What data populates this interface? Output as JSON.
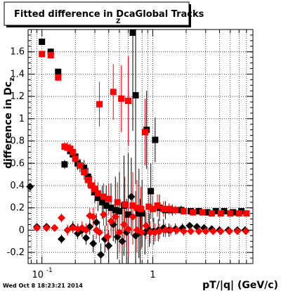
{
  "chart_data": {
    "type": "scatter",
    "title": "Fitted difference in DcaGlobal Tracks",
    "title_subscript": "Z",
    "title_subscript_after": "Dca",
    "xlabel": "pT/|q| (GeV/c)",
    "ylabel": "difference in Dc",
    "ylabel_subscript": "z",
    "x_scale": "log",
    "xlim": [
      0.075,
      8.0
    ],
    "ylim": [
      -0.3,
      1.8
    ],
    "x_tick_labels": [
      "10^-1",
      "1"
    ],
    "y_ticks": [
      -0.2,
      0,
      0.2,
      0.4,
      0.6,
      0.8,
      1,
      1.2,
      1.4,
      1.6
    ],
    "grid": true,
    "timestamp": "Wed Oct  8 18:23:21 2014",
    "series": [
      {
        "marker": "square",
        "color": "#000000",
        "points": [
          {
            "x": 0.1,
            "y": 1.69,
            "err": 0.03
          },
          {
            "x": 0.12,
            "y": 1.6,
            "err": 0.03
          },
          {
            "x": 0.14,
            "y": 1.42,
            "err": 0.03
          },
          {
            "x": 0.16,
            "y": 0.59,
            "err": 0.04
          },
          {
            "x": 0.18,
            "y": 0.71,
            "err": 0.05
          },
          {
            "x": 0.19,
            "y": 0.68,
            "err": 0.05
          },
          {
            "x": 0.2,
            "y": 0.66,
            "err": 0.05
          },
          {
            "x": 0.21,
            "y": 0.6,
            "err": 0.06
          },
          {
            "x": 0.22,
            "y": 0.58,
            "err": 0.06
          },
          {
            "x": 0.24,
            "y": 0.56,
            "err": 0.07
          },
          {
            "x": 0.26,
            "y": 0.48,
            "err": 0.08
          },
          {
            "x": 0.28,
            "y": 0.4,
            "err": 0.09
          },
          {
            "x": 0.3,
            "y": 0.34,
            "err": 0.1
          },
          {
            "x": 0.32,
            "y": 0.29,
            "err": 0.12
          },
          {
            "x": 0.35,
            "y": 0.25,
            "err": 0.15
          },
          {
            "x": 0.38,
            "y": 0.22,
            "err": 0.18
          },
          {
            "x": 0.42,
            "y": 0.2,
            "err": 0.22
          },
          {
            "x": 0.46,
            "y": 0.18,
            "err": 0.3
          },
          {
            "x": 0.5,
            "y": 0.17,
            "err": 0.35
          },
          {
            "x": 0.55,
            "y": 0.22,
            "err": 0.45
          },
          {
            "x": 0.6,
            "y": 0.14,
            "err": 0.55
          },
          {
            "x": 0.66,
            "y": 1.79,
            "err": 0.9
          },
          {
            "x": 0.7,
            "y": 1.21,
            "err": 0.8
          },
          {
            "x": 0.75,
            "y": 0.15,
            "err": 0.4
          },
          {
            "x": 0.8,
            "y": 0.15,
            "err": 0.3
          },
          {
            "x": 0.88,
            "y": 0.9,
            "err": 0.35
          },
          {
            "x": 0.96,
            "y": 0.35,
            "err": 0.25
          },
          {
            "x": 1.05,
            "y": 0.81,
            "err": 0.2
          },
          {
            "x": 1.15,
            "y": 0.2,
            "err": 0.12
          },
          {
            "x": 1.3,
            "y": 0.18,
            "err": 0.08
          },
          {
            "x": 1.5,
            "y": 0.18,
            "err": 0.05
          },
          {
            "x": 1.8,
            "y": 0.18,
            "err": 0.04
          },
          {
            "x": 2.2,
            "y": 0.17,
            "err": 0.03
          },
          {
            "x": 2.6,
            "y": 0.17,
            "err": 0.03
          },
          {
            "x": 3.1,
            "y": 0.16,
            "err": 0.03
          },
          {
            "x": 3.7,
            "y": 0.17,
            "err": 0.02
          },
          {
            "x": 4.4,
            "y": 0.17,
            "err": 0.02
          },
          {
            "x": 5.3,
            "y": 0.16,
            "err": 0.02
          },
          {
            "x": 6.3,
            "y": 0.17,
            "err": 0.02
          }
        ]
      },
      {
        "marker": "square",
        "color": "#ff0000",
        "points": [
          {
            "x": 0.1,
            "y": 1.58,
            "err": 0.03
          },
          {
            "x": 0.12,
            "y": 1.57,
            "err": 0.03
          },
          {
            "x": 0.14,
            "y": 1.37,
            "err": 0.03
          },
          {
            "x": 0.16,
            "y": 0.75,
            "err": 0.04
          },
          {
            "x": 0.17,
            "y": 0.74,
            "err": 0.05
          },
          {
            "x": 0.18,
            "y": 0.73,
            "err": 0.05
          },
          {
            "x": 0.19,
            "y": 0.7,
            "err": 0.05
          },
          {
            "x": 0.2,
            "y": 0.64,
            "err": 0.05
          },
          {
            "x": 0.22,
            "y": 0.58,
            "err": 0.06
          },
          {
            "x": 0.24,
            "y": 0.52,
            "err": 0.07
          },
          {
            "x": 0.26,
            "y": 0.45,
            "err": 0.07
          },
          {
            "x": 0.28,
            "y": 0.4,
            "err": 0.08
          },
          {
            "x": 0.3,
            "y": 0.37,
            "err": 0.09
          },
          {
            "x": 0.32,
            "y": 0.33,
            "err": 0.1
          },
          {
            "x": 0.33,
            "y": 1.13,
            "err": 0.2
          },
          {
            "x": 0.36,
            "y": 0.3,
            "err": 0.12
          },
          {
            "x": 0.4,
            "y": 0.28,
            "err": 0.14
          },
          {
            "x": 0.44,
            "y": 1.24,
            "err": 0.25
          },
          {
            "x": 0.48,
            "y": 0.25,
            "err": 0.18
          },
          {
            "x": 0.52,
            "y": 1.18,
            "err": 0.3
          },
          {
            "x": 0.56,
            "y": 0.23,
            "err": 0.25
          },
          {
            "x": 0.6,
            "y": 1.16,
            "err": 0.4
          },
          {
            "x": 0.66,
            "y": 0.22,
            "err": 0.3
          },
          {
            "x": 0.72,
            "y": 0.2,
            "err": 0.25
          },
          {
            "x": 0.78,
            "y": 0.19,
            "err": 0.2
          },
          {
            "x": 0.85,
            "y": 0.88,
            "err": 0.3
          },
          {
            "x": 0.92,
            "y": 0.21,
            "err": 0.15
          },
          {
            "x": 1.0,
            "y": 0.19,
            "err": 0.12
          },
          {
            "x": 1.1,
            "y": 0.22,
            "err": 0.1
          },
          {
            "x": 1.25,
            "y": 0.19,
            "err": 0.07
          },
          {
            "x": 1.4,
            "y": 0.19,
            "err": 0.05
          },
          {
            "x": 1.6,
            "y": 0.18,
            "err": 0.04
          },
          {
            "x": 1.9,
            "y": 0.17,
            "err": 0.03
          },
          {
            "x": 2.3,
            "y": 0.16,
            "err": 0.03
          },
          {
            "x": 2.8,
            "y": 0.16,
            "err": 0.03
          },
          {
            "x": 3.4,
            "y": 0.15,
            "err": 0.02
          },
          {
            "x": 4.1,
            "y": 0.15,
            "err": 0.02
          },
          {
            "x": 5.0,
            "y": 0.15,
            "err": 0.02
          },
          {
            "x": 6.0,
            "y": 0.15,
            "err": 0.02
          },
          {
            "x": 7.0,
            "y": 0.15,
            "err": 0.02
          }
        ]
      },
      {
        "marker": "diamond",
        "color": "#000000",
        "points": [
          {
            "x": 0.078,
            "y": 0.39,
            "err": 0.03
          },
          {
            "x": 0.09,
            "y": 0.03,
            "err": 0.03
          },
          {
            "x": 0.11,
            "y": 0.03,
            "err": 0.03
          },
          {
            "x": 0.13,
            "y": 0.02,
            "err": 0.03
          },
          {
            "x": 0.15,
            "y": -0.08,
            "err": 0.04
          },
          {
            "x": 0.17,
            "y": 0.0,
            "err": 0.05
          },
          {
            "x": 0.19,
            "y": 0.03,
            "err": 0.05
          },
          {
            "x": 0.21,
            "y": -0.03,
            "err": 0.05
          },
          {
            "x": 0.23,
            "y": 0.0,
            "err": 0.06
          },
          {
            "x": 0.25,
            "y": -0.07,
            "err": 0.06
          },
          {
            "x": 0.27,
            "y": 0.03,
            "err": 0.07
          },
          {
            "x": 0.29,
            "y": -0.12,
            "err": 0.08
          },
          {
            "x": 0.31,
            "y": 0.07,
            "err": 0.08
          },
          {
            "x": 0.34,
            "y": -0.22,
            "err": 0.1
          },
          {
            "x": 0.37,
            "y": -0.08,
            "err": 0.12
          },
          {
            "x": 0.4,
            "y": -0.14,
            "err": 0.14
          },
          {
            "x": 0.44,
            "y": 0.05,
            "err": 0.15
          },
          {
            "x": 0.48,
            "y": -0.06,
            "err": 0.2
          },
          {
            "x": 0.53,
            "y": -0.1,
            "err": 0.25
          },
          {
            "x": 0.58,
            "y": -0.02,
            "err": 0.3
          },
          {
            "x": 0.64,
            "y": 0.3,
            "err": 0.35
          },
          {
            "x": 0.7,
            "y": -0.05,
            "err": 0.4
          },
          {
            "x": 0.77,
            "y": -0.02,
            "err": 0.3
          },
          {
            "x": 0.85,
            "y": -0.02,
            "err": 0.2
          },
          {
            "x": 0.93,
            "y": 0.0,
            "err": 0.15
          },
          {
            "x": 1.02,
            "y": -0.01,
            "err": 0.12
          },
          {
            "x": 1.12,
            "y": 0.0,
            "err": 0.1
          },
          {
            "x": 1.25,
            "y": 0.02,
            "err": 0.08
          },
          {
            "x": 1.4,
            "y": 0.0,
            "err": 0.06
          },
          {
            "x": 1.6,
            "y": 0.01,
            "err": 0.05
          },
          {
            "x": 1.85,
            "y": 0.02,
            "err": 0.04
          },
          {
            "x": 2.15,
            "y": 0.04,
            "err": 0.03
          },
          {
            "x": 2.5,
            "y": 0.03,
            "err": 0.03
          },
          {
            "x": 2.9,
            "y": 0.02,
            "err": 0.03
          },
          {
            "x": 3.4,
            "y": 0.01,
            "err": 0.02
          },
          {
            "x": 4.0,
            "y": 0.0,
            "err": 0.02
          },
          {
            "x": 4.8,
            "y": 0.0,
            "err": 0.02
          },
          {
            "x": 5.8,
            "y": 0.0,
            "err": 0.02
          },
          {
            "x": 6.8,
            "y": 0.0,
            "err": 0.02
          }
        ]
      },
      {
        "marker": "diamond",
        "color": "#ff0000",
        "points": [
          {
            "x": 0.09,
            "y": 0.02,
            "err": 0.03
          },
          {
            "x": 0.11,
            "y": 0.02,
            "err": 0.03
          },
          {
            "x": 0.13,
            "y": 0.02,
            "err": 0.03
          },
          {
            "x": 0.15,
            "y": 0.11,
            "err": 0.04
          },
          {
            "x": 0.17,
            "y": 0.0,
            "err": 0.05
          },
          {
            "x": 0.19,
            "y": 0.02,
            "err": 0.05
          },
          {
            "x": 0.21,
            "y": 0.01,
            "err": 0.05
          },
          {
            "x": 0.23,
            "y": 0.02,
            "err": 0.06
          },
          {
            "x": 0.25,
            "y": 0.0,
            "err": 0.06
          },
          {
            "x": 0.27,
            "y": 0.13,
            "err": 0.07
          },
          {
            "x": 0.29,
            "y": 0.12,
            "err": 0.08
          },
          {
            "x": 0.31,
            "y": 0.0,
            "err": 0.08
          },
          {
            "x": 0.33,
            "y": -0.02,
            "err": 0.09
          },
          {
            "x": 0.36,
            "y": 0.14,
            "err": 0.1
          },
          {
            "x": 0.39,
            "y": -0.06,
            "err": 0.12
          },
          {
            "x": 0.42,
            "y": 0.08,
            "err": 0.14
          },
          {
            "x": 0.46,
            "y": 0.12,
            "err": 0.15
          },
          {
            "x": 0.5,
            "y": -0.02,
            "err": 0.18
          },
          {
            "x": 0.55,
            "y": 0.05,
            "err": 0.2
          },
          {
            "x": 0.6,
            "y": 0.01,
            "err": 0.25
          },
          {
            "x": 0.66,
            "y": 0.12,
            "err": 0.25
          },
          {
            "x": 0.72,
            "y": 0.0,
            "err": 0.2
          },
          {
            "x": 0.79,
            "y": -0.02,
            "err": 0.15
          },
          {
            "x": 0.87,
            "y": 0.04,
            "err": 0.12
          },
          {
            "x": 0.95,
            "y": -0.02,
            "err": 0.1
          },
          {
            "x": 1.05,
            "y": -0.02,
            "err": 0.08
          },
          {
            "x": 1.15,
            "y": -0.01,
            "err": 0.07
          },
          {
            "x": 1.3,
            "y": 0.0,
            "err": 0.06
          },
          {
            "x": 1.45,
            "y": 0.0,
            "err": 0.05
          },
          {
            "x": 1.65,
            "y": 0.0,
            "err": 0.04
          },
          {
            "x": 1.9,
            "y": -0.01,
            "err": 0.04
          },
          {
            "x": 2.2,
            "y": -0.01,
            "err": 0.03
          },
          {
            "x": 2.6,
            "y": -0.01,
            "err": 0.03
          },
          {
            "x": 3.0,
            "y": -0.01,
            "err": 0.03
          },
          {
            "x": 3.5,
            "y": -0.01,
            "err": 0.02
          },
          {
            "x": 4.1,
            "y": -0.01,
            "err": 0.02
          },
          {
            "x": 4.9,
            "y": -0.01,
            "err": 0.02
          },
          {
            "x": 5.8,
            "y": -0.01,
            "err": 0.02
          },
          {
            "x": 6.9,
            "y": -0.01,
            "err": 0.02
          }
        ]
      }
    ]
  }
}
